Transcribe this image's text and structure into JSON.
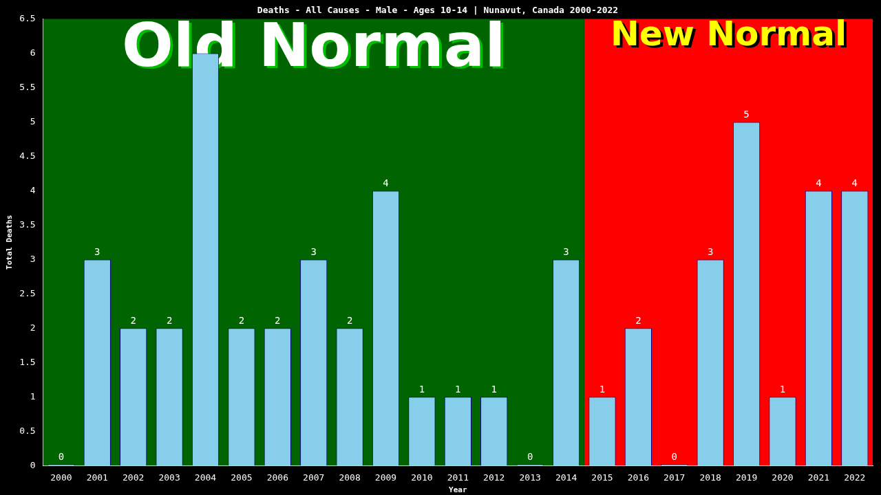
{
  "chart_data": {
    "type": "bar",
    "title": "Deaths - All Causes - Male - Ages 10-14 | Nunavut, Canada 2000-2022",
    "xlabel": "Year",
    "ylabel": "Total Deaths",
    "categories": [
      "2000",
      "2001",
      "2002",
      "2003",
      "2004",
      "2005",
      "2006",
      "2007",
      "2008",
      "2009",
      "2010",
      "2011",
      "2012",
      "2013",
      "2014",
      "2015",
      "2016",
      "2017",
      "2018",
      "2019",
      "2020",
      "2021",
      "2022"
    ],
    "values": [
      0,
      3,
      2,
      2,
      6,
      2,
      2,
      3,
      2,
      4,
      1,
      1,
      1,
      0,
      3,
      1,
      2,
      0,
      3,
      5,
      1,
      4,
      4
    ],
    "color": "#87ceeb",
    "ylim": [
      0,
      6.5
    ],
    "yticks": [
      0,
      0.5,
      1,
      1.5,
      2,
      2.5,
      3,
      3.5,
      4,
      4.5,
      5,
      5.5,
      6,
      6.5
    ],
    "value_labels": [
      "0",
      "3",
      "2",
      "2",
      null,
      "2",
      "2",
      "3",
      "2",
      "4",
      "1",
      "1",
      "1",
      "0",
      "3",
      "1",
      "2",
      "0",
      "3",
      "5",
      "1",
      "4",
      "4"
    ],
    "grid": false,
    "legend": false,
    "bands": [
      {
        "axis": "x",
        "from": "2000",
        "to": "2014",
        "label": "Old Normal",
        "color": "#006400"
      },
      {
        "axis": "x",
        "from": "2015",
        "to": "2022",
        "label": "New Normal",
        "color": "#ff0000"
      }
    ]
  }
}
